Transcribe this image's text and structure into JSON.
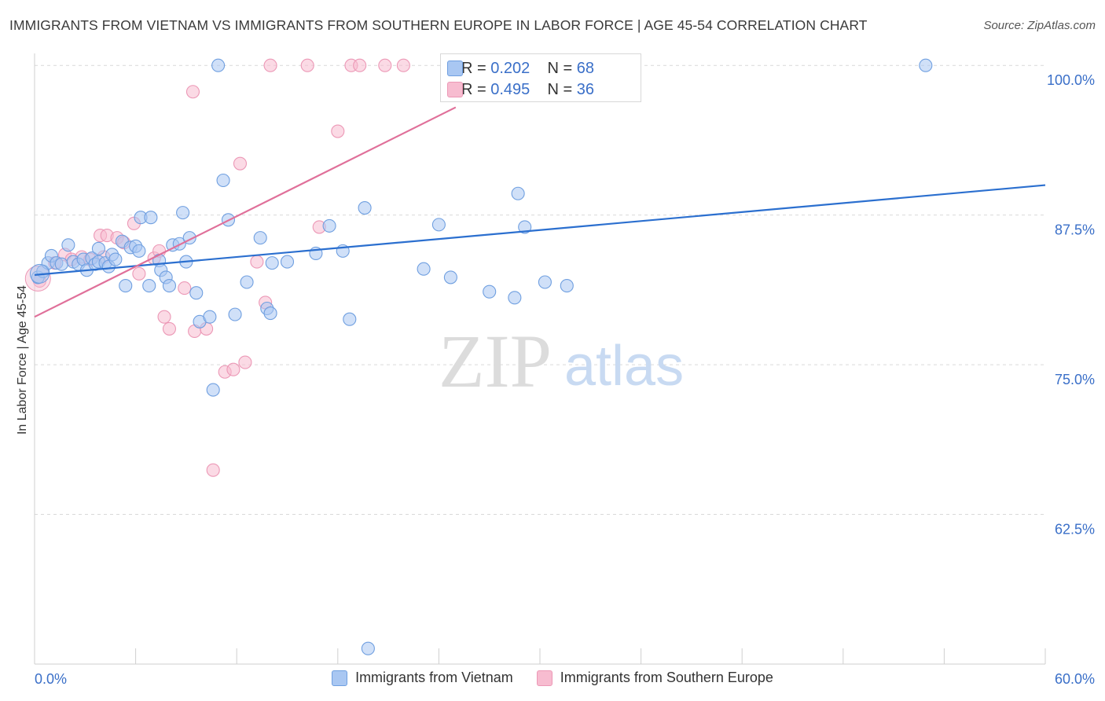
{
  "title": "IMMIGRANTS FROM VIETNAM VS IMMIGRANTS FROM SOUTHERN EUROPE IN LABOR FORCE | AGE 45-54 CORRELATION CHART",
  "source": "Source: ZipAtlas.com",
  "watermark": {
    "zip": "ZIP",
    "atlas": "atlas"
  },
  "colors": {
    "vietnam_fill": "#a9c7f2",
    "vietnam_stroke": "#6f9fe0",
    "vietnam_line": "#2b6fcf",
    "southern_fill": "#f7bcd0",
    "southern_stroke": "#ec98b6",
    "southern_line": "#e0709a",
    "axis_text": "#3a6fc8",
    "grid": "#d9d9d9"
  },
  "stats": [
    {
      "r_label": "R =",
      "r": "0.202",
      "n_label": "N =",
      "n": "68"
    },
    {
      "r_label": "R =",
      "r": "0.495",
      "n_label": "N =",
      "n": "36"
    }
  ],
  "chart_data": {
    "type": "scatter",
    "xlabel": "",
    "ylabel": "In Labor Force | Age 45-54",
    "xlim": [
      0,
      60
    ],
    "ylim": [
      50,
      101
    ],
    "x_tick_labels": [
      {
        "value": 0,
        "label": "0.0%"
      },
      {
        "value": 60,
        "label": "60.0%"
      }
    ],
    "y_tick_labels": [
      {
        "value": 100,
        "label": "100.0%"
      },
      {
        "value": 87.5,
        "label": "87.5%"
      },
      {
        "value": 75,
        "label": "75.0%"
      },
      {
        "value": 62.5,
        "label": "62.5%"
      }
    ],
    "grid": "horizontal dashed",
    "legend": "bottom",
    "series": [
      {
        "name": "Immigrants from Vietnam",
        "trend": {
          "x": [
            0,
            60
          ],
          "y": [
            82.5,
            90.0
          ]
        },
        "points": [
          [
            0.2,
            82.3
          ],
          [
            0.5,
            82.8
          ],
          [
            0.8,
            83.5
          ],
          [
            1.0,
            84.1
          ],
          [
            1.3,
            83.5
          ],
          [
            1.6,
            83.4
          ],
          [
            2.0,
            85.0
          ],
          [
            2.3,
            83.6
          ],
          [
            2.6,
            83.4
          ],
          [
            2.9,
            83.8
          ],
          [
            3.1,
            82.9
          ],
          [
            3.4,
            83.9
          ],
          [
            3.6,
            83.4
          ],
          [
            3.8,
            83.6
          ],
          [
            3.8,
            84.7
          ],
          [
            4.2,
            83.5
          ],
          [
            4.4,
            83.2
          ],
          [
            4.6,
            84.2
          ],
          [
            4.8,
            83.8
          ],
          [
            5.2,
            85.3
          ],
          [
            5.4,
            81.6
          ],
          [
            5.7,
            84.8
          ],
          [
            6.0,
            84.9
          ],
          [
            6.2,
            84.5
          ],
          [
            6.3,
            87.3
          ],
          [
            6.8,
            81.6
          ],
          [
            6.9,
            87.3
          ],
          [
            7.4,
            83.7
          ],
          [
            7.5,
            82.9
          ],
          [
            7.8,
            82.3
          ],
          [
            8.0,
            81.6
          ],
          [
            8.2,
            85.0
          ],
          [
            8.6,
            85.1
          ],
          [
            8.8,
            87.7
          ],
          [
            9.0,
            83.6
          ],
          [
            9.2,
            85.6
          ],
          [
            9.6,
            81.0
          ],
          [
            9.8,
            78.6
          ],
          [
            10.4,
            79.0
          ],
          [
            10.6,
            72.9
          ],
          [
            10.9,
            100.0
          ],
          [
            11.2,
            90.4
          ],
          [
            11.5,
            87.1
          ],
          [
            11.9,
            79.2
          ],
          [
            12.6,
            81.9
          ],
          [
            13.4,
            85.6
          ],
          [
            13.8,
            79.7
          ],
          [
            14.0,
            79.3
          ],
          [
            14.1,
            83.5
          ],
          [
            15.0,
            83.6
          ],
          [
            16.7,
            84.3
          ],
          [
            17.5,
            86.6
          ],
          [
            18.3,
            84.5
          ],
          [
            18.7,
            78.8
          ],
          [
            19.6,
            88.1
          ],
          [
            19.8,
            51.3
          ],
          [
            23.1,
            83.0
          ],
          [
            24.0,
            86.7
          ],
          [
            24.7,
            82.3
          ],
          [
            25.3,
            100.0
          ],
          [
            25.5,
            100.0
          ],
          [
            27.0,
            81.1
          ],
          [
            28.5,
            80.6
          ],
          [
            28.7,
            89.3
          ],
          [
            29.1,
            86.5
          ],
          [
            30.3,
            81.9
          ],
          [
            31.6,
            81.6
          ],
          [
            52.9,
            100.0
          ]
        ]
      },
      {
        "name": "Immigrants from Southern Europe",
        "trend": {
          "x": [
            0,
            25.0
          ],
          "y": [
            79.0,
            96.5
          ]
        },
        "points": [
          [
            0.3,
            82.0
          ],
          [
            1.2,
            83.5
          ],
          [
            1.8,
            84.2
          ],
          [
            2.2,
            83.8
          ],
          [
            2.8,
            84.0
          ],
          [
            3.3,
            83.8
          ],
          [
            3.9,
            85.8
          ],
          [
            4.1,
            84.0
          ],
          [
            4.3,
            85.8
          ],
          [
            4.9,
            85.6
          ],
          [
            5.3,
            85.2
          ],
          [
            5.9,
            86.8
          ],
          [
            6.2,
            82.6
          ],
          [
            7.1,
            83.9
          ],
          [
            7.4,
            84.5
          ],
          [
            7.7,
            79.0
          ],
          [
            8.0,
            78.0
          ],
          [
            8.9,
            81.4
          ],
          [
            9.4,
            97.8
          ],
          [
            9.5,
            77.8
          ],
          [
            10.2,
            78.0
          ],
          [
            10.6,
            66.2
          ],
          [
            11.3,
            74.4
          ],
          [
            11.8,
            74.6
          ],
          [
            12.2,
            91.8
          ],
          [
            12.5,
            75.2
          ],
          [
            13.2,
            83.6
          ],
          [
            13.7,
            80.2
          ],
          [
            14.0,
            100.0
          ],
          [
            16.2,
            100.0
          ],
          [
            16.9,
            86.5
          ],
          [
            18.0,
            94.5
          ],
          [
            18.8,
            100.0
          ],
          [
            19.3,
            100.0
          ],
          [
            20.8,
            100.0
          ],
          [
            21.9,
            100.0
          ]
        ]
      }
    ]
  }
}
